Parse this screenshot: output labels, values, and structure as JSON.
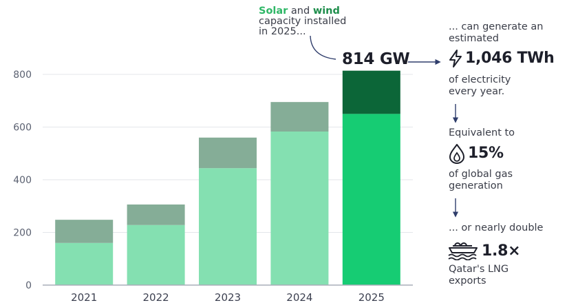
{
  "chart_data": {
    "type": "bar",
    "stacked": true,
    "categories": [
      "2021",
      "2022",
      "2023",
      "2024",
      "2025"
    ],
    "series": [
      {
        "name": "Solar",
        "values": [
          160,
          228,
          444,
          583,
          650
        ]
      },
      {
        "name": "Wind",
        "values": [
          88,
          78,
          116,
          112,
          164
        ]
      }
    ],
    "highlight_category": "2025",
    "ylim": [
      0,
      850
    ],
    "yticks": [
      0,
      200,
      400,
      600,
      800
    ],
    "xlabel": "",
    "ylabel": "",
    "grid": true
  },
  "annotation": {
    "solar_word": "Solar",
    "and_word": "and",
    "wind_word": "wind",
    "rest_line2": "capacity installed",
    "rest_line3": "in 2025...",
    "total_value": "814 GW"
  },
  "facts": {
    "gen_intro_line1": "... can generate an",
    "gen_intro_line2": "estimated",
    "gen_value": "1,046 TWh",
    "gen_after_line1": "of electricity",
    "gen_after_line2": "every year.",
    "gas_intro": "Equivalent to",
    "gas_value": "15%",
    "gas_after_line1": "of global gas",
    "gas_after_line2": "generation",
    "lng_intro": "... or nearly double",
    "lng_value": "1.8×",
    "lng_after_line1": "Qatar's LNG",
    "lng_after_line2": "exports"
  },
  "colors": {
    "solar_past": "#84e0b1",
    "wind_past": "#85ad97",
    "solar_2025": "#16cc73",
    "wind_2025": "#0c6638",
    "text_dark": "#1d1f2a",
    "arrow": "#2f3d6b"
  },
  "icons": {
    "generation": "lightning-icon",
    "gas": "flame-drop-icon",
    "lng": "lng-ship-icon"
  }
}
